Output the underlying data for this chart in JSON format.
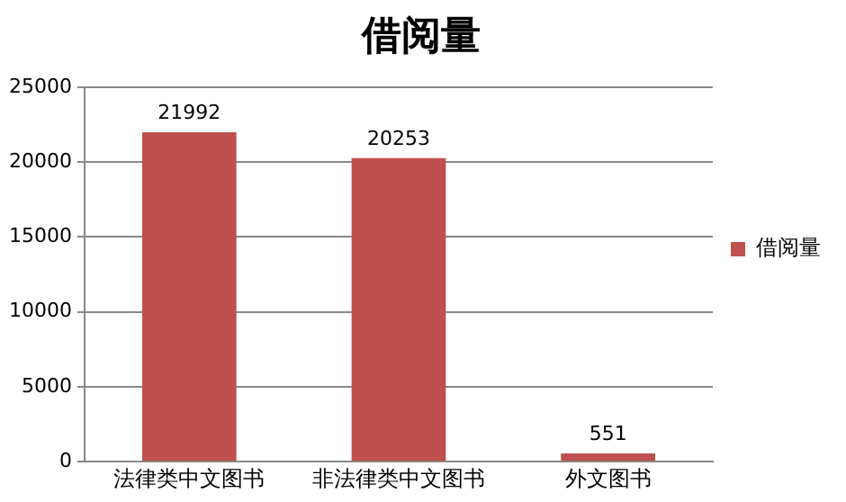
{
  "chart_data": {
    "type": "bar",
    "title": "借阅量",
    "categories": [
      "法律类中文图书",
      "非法律类中文图书",
      "外文图书"
    ],
    "series": [
      {
        "name": "借阅量",
        "color": "#c0504d",
        "values": [
          21992,
          20253,
          551
        ]
      }
    ],
    "ylim": [
      0,
      25000
    ],
    "yticks": [
      0,
      5000,
      10000,
      15000,
      20000,
      25000
    ],
    "grid": "y",
    "legend": "right",
    "data_labels": true
  }
}
